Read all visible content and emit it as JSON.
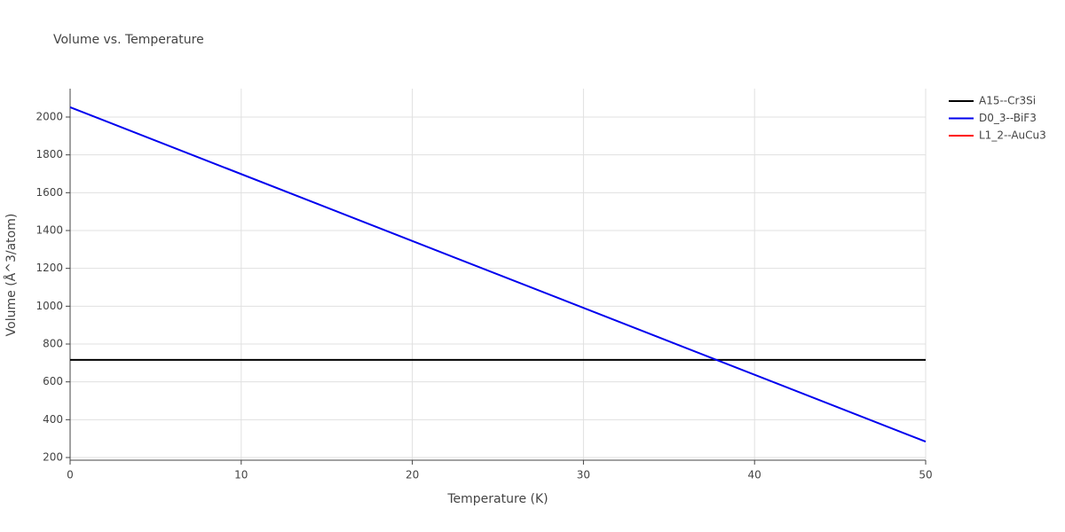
{
  "chart_data": {
    "type": "line",
    "title": "Volume vs. Temperature",
    "x_label": "Temperature (K)",
    "y_label": "Volume (Å^3/atom)",
    "x": [
      0,
      50
    ],
    "series": [
      {
        "name": "A15--Cr3Si",
        "color": "#000000",
        "values": [
          716,
          716
        ]
      },
      {
        "name": "D0_3--BiF3",
        "color": "#0000ee",
        "values": [
          2052,
          284
        ]
      },
      {
        "name": "L1_2--AuCu3",
        "color": "#ff0000",
        "values": [
          null,
          null
        ]
      }
    ],
    "xlim": [
      0,
      50
    ],
    "xticks": [
      0,
      10,
      20,
      30,
      40,
      50
    ],
    "ylim": [
      186,
      2150
    ],
    "yticks": [
      200,
      400,
      600,
      800,
      1000,
      1200,
      1400,
      1600,
      1800,
      2000
    ],
    "grid": true,
    "legend": "top-right"
  }
}
